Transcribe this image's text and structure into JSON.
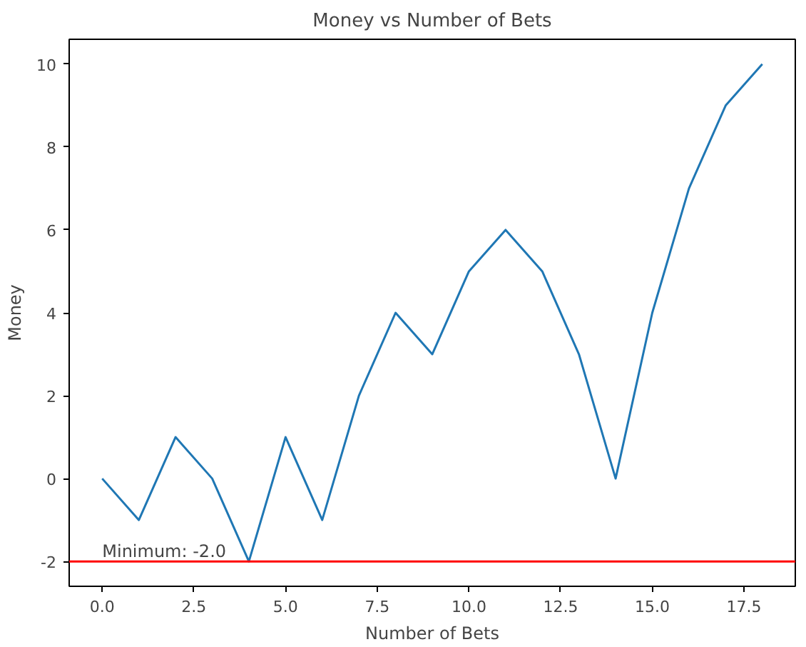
{
  "chart_data": {
    "type": "line",
    "title": "Money vs Number of Bets",
    "xlabel": "Number of Bets",
    "ylabel": "Money",
    "x": [
      0,
      1,
      2,
      3,
      4,
      5,
      6,
      7,
      8,
      9,
      10,
      11,
      12,
      13,
      14,
      15,
      16,
      17,
      18
    ],
    "series": [
      {
        "color": "#1f77b4",
        "values": [
          0,
          -1,
          1,
          0,
          -2,
          1,
          -1,
          2,
          4,
          3,
          5,
          6,
          5,
          3,
          0,
          4,
          7,
          9,
          10
        ]
      }
    ],
    "xlim": [
      -0.9,
      18.9
    ],
    "ylim": [
      -2.6,
      10.6
    ],
    "xticks": [
      {
        "value": 0,
        "label": "0.0"
      },
      {
        "value": 2.5,
        "label": "2.5"
      },
      {
        "value": 5,
        "label": "5.0"
      },
      {
        "value": 7.5,
        "label": "7.5"
      },
      {
        "value": 10,
        "label": "10.0"
      },
      {
        "value": 12.5,
        "label": "12.5"
      },
      {
        "value": 15,
        "label": "15.0"
      },
      {
        "value": 17.5,
        "label": "17.5"
      }
    ],
    "yticks": [
      -2,
      0,
      2,
      4,
      6,
      8,
      10
    ],
    "ref_lines": [
      {
        "axis": "y",
        "value": -2,
        "color": "#ff0000"
      }
    ],
    "annotations": [
      {
        "text": "Minimum: -2.0",
        "x": 0,
        "y": -2
      }
    ],
    "grid": false
  }
}
